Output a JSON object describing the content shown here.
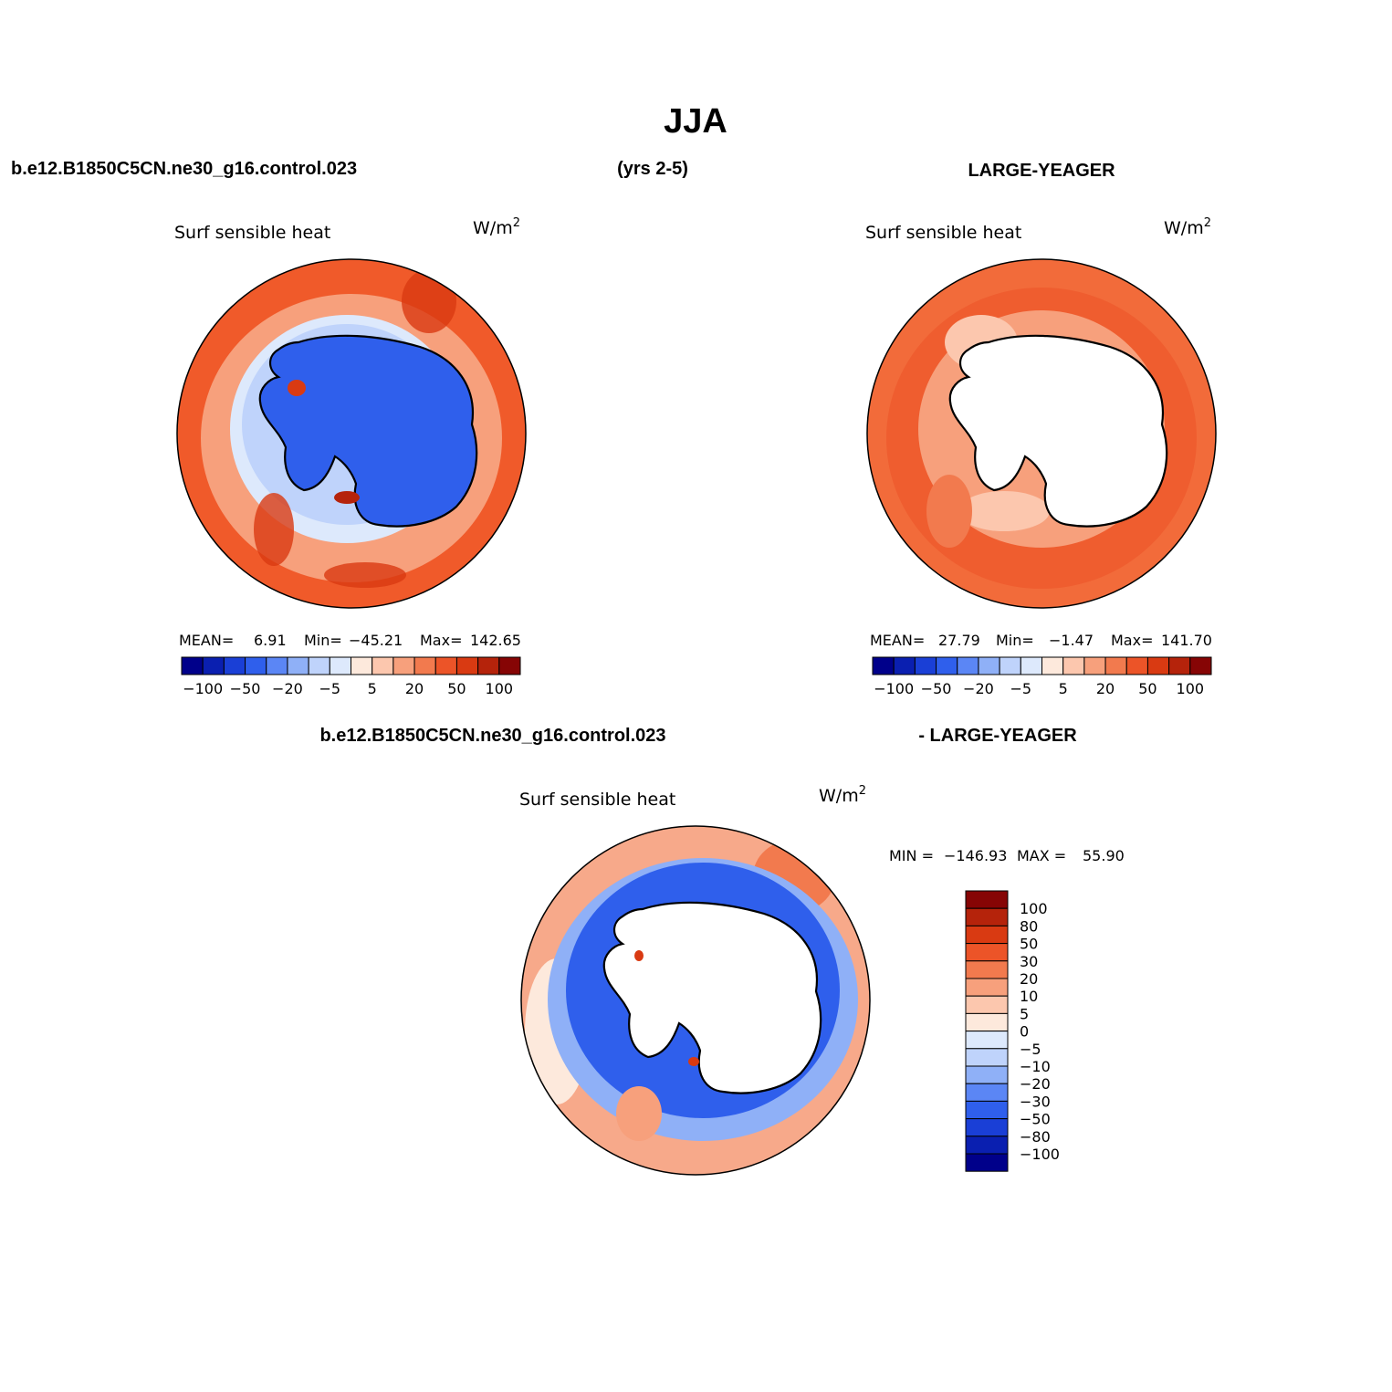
{
  "figure": {
    "title": "JJA",
    "case_name": "b.e12.B1850C5CN.ne30_g16.control.023",
    "years_label": "(yrs 2-5)",
    "obs_name": "LARGE-YEAGER",
    "diff_case_name": "b.e12.B1850C5CN.ne30_g16.control.023",
    "diff_obs_name": "- LARGE-YEAGER"
  },
  "panels": [
    {
      "id": "model",
      "variable": "Surf sensible heat",
      "units_base": "W/m",
      "units_exp": "2",
      "stats": {
        "mean_label": "MEAN=",
        "mean": "6.91",
        "min_label": "Min=",
        "min": "−45.21",
        "max_label": "Max=",
        "max": "142.65"
      },
      "ocean_fill": "#f05a2a",
      "continent_fill": "#2f5fec"
    },
    {
      "id": "obs",
      "variable": "Surf sensible heat",
      "units_base": "W/m",
      "units_exp": "2",
      "stats": {
        "mean_label": "MEAN=",
        "mean": "27.79",
        "min_label": "Min=",
        "min": "−1.47",
        "max_label": "Max=",
        "max": "141.70"
      },
      "ocean_fill": "#f26b3a",
      "continent_fill": "#ffffff"
    },
    {
      "id": "diff",
      "variable": "Surf sensible heat",
      "units_base": "W/m",
      "units_exp": "2",
      "stats": {
        "min_label": "MIN =",
        "min": "−146.93",
        "max_label": "MAX =",
        "max": "55.90"
      },
      "ocean_fill": "#f7a98a",
      "continent_fill": "#ffffff"
    }
  ],
  "colorbar_horizontal": {
    "colors": [
      "#00008a",
      "#0a1fb0",
      "#1a3fd6",
      "#2f5fec",
      "#5b86f5",
      "#8fb0f7",
      "#bfd3fb",
      "#dde9fc",
      "#fde9dc",
      "#fcc7ae",
      "#f7a07c",
      "#f27a4e",
      "#ec5428",
      "#d93a12",
      "#b5230b",
      "#860505"
    ],
    "tick_labels": [
      "−100",
      "−50",
      "−20",
      "−5",
      "5",
      "20",
      "50",
      "100"
    ]
  },
  "colorbar_vertical": {
    "colors": [
      "#860505",
      "#b5230b",
      "#d93a12",
      "#ec5428",
      "#f27a4e",
      "#f7a07c",
      "#fcc7ae",
      "#fde9dc",
      "#dde9fc",
      "#bfd3fb",
      "#8fb0f7",
      "#5b86f5",
      "#2f5fec",
      "#1a3fd6",
      "#0a1fb0",
      "#00008a"
    ],
    "tick_labels": [
      "100",
      "80",
      "50",
      "30",
      "20",
      "10",
      "5",
      "0",
      "−5",
      "−10",
      "−20",
      "−30",
      "−50",
      "−80",
      "−100"
    ]
  }
}
